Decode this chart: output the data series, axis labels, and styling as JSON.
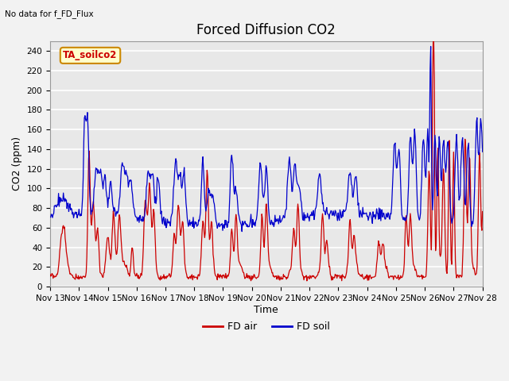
{
  "title": "Forced Diffusion CO2",
  "top_left_text": "No data for f_FD_Flux",
  "annotation_text": "TA_soilco2",
  "ylabel": "CO2 (ppm)",
  "xlabel": "Time",
  "ylim": [
    0,
    250
  ],
  "yticks": [
    0,
    20,
    40,
    60,
    80,
    100,
    120,
    140,
    160,
    180,
    200,
    220,
    240
  ],
  "xtick_labels": [
    "Nov 13",
    "Nov 14",
    "Nov 15",
    "Nov 16",
    "Nov 17",
    "Nov 18",
    "Nov 19",
    "Nov 20",
    "Nov 21",
    "Nov 22",
    "Nov 23",
    "Nov 24",
    "Nov 25",
    "Nov 26",
    "Nov 27",
    "Nov 28"
  ],
  "line_red_color": "#cc0000",
  "line_blue_color": "#0000cc",
  "legend_red": "FD air",
  "legend_blue": "FD soil",
  "plot_bg_color": "#e8e8e8",
  "title_fontsize": 12,
  "label_fontsize": 9,
  "tick_fontsize": 7.5,
  "linewidth": 0.9
}
